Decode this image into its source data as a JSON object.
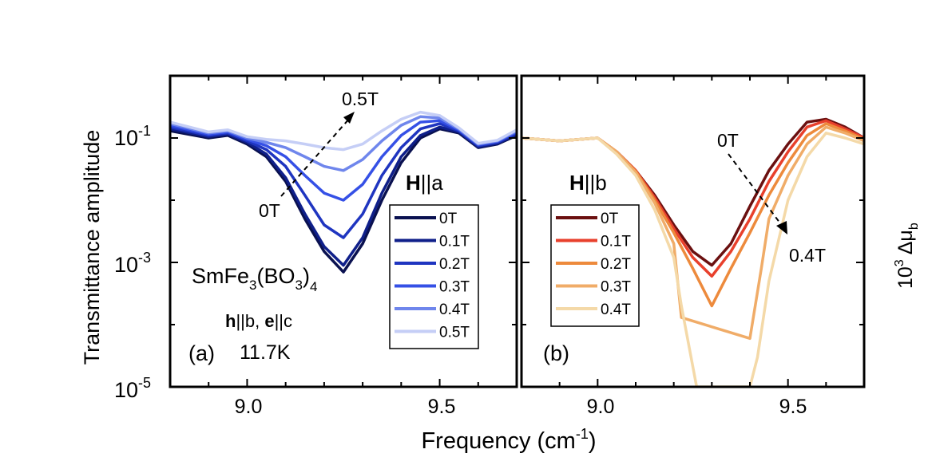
{
  "figure": {
    "ylabel": "Transmittance amplitude",
    "xlabel": "Frequency (cm",
    "xlabel_sup": "-1",
    "xlabel_tail": ")",
    "right_label_base": "10",
    "right_label_exp": "3",
    "right_label_sym": "Δμ",
    "right_label_sub": "b"
  },
  "panel_a": {
    "tag": "(a)",
    "sample_main": "SmFe",
    "sample_sub1": "3",
    "sample_mid": "(BO",
    "sample_sub2": "3",
    "sample_close": ")",
    "sample_sub3": "4",
    "pol_h": "h",
    "pol_hb": "||b, ",
    "pol_e": "e",
    "pol_ec": "||c",
    "temperature": "11.7K",
    "field_h": "H",
    "field_dir": "||a",
    "arrow_start": "0T",
    "arrow_end": "0.5T"
  },
  "panel_b": {
    "tag": "(b)",
    "field_h": "H",
    "field_dir": "||b",
    "arrow_start": "0T",
    "arrow_end": "0.4T"
  },
  "chart_data": [
    {
      "type": "line",
      "panel": "a",
      "xlim": [
        8.8,
        9.7
      ],
      "ylim": [
        1e-05,
        1
      ],
      "yscale": "log",
      "xticks": [
        "9.0",
        "9.5"
      ],
      "yticks": [
        {
          "base": "10",
          "exp": "-1"
        },
        {
          "base": "10",
          "exp": "-3"
        },
        {
          "base": "10",
          "exp": "-5"
        }
      ],
      "legend": "lower-right",
      "series": [
        {
          "name": "0T",
          "color": "#0a1150",
          "x": [
            8.8,
            8.9,
            8.95,
            9.0,
            9.05,
            9.1,
            9.15,
            9.2,
            9.25,
            9.3,
            9.35,
            9.4,
            9.45,
            9.5,
            9.55,
            9.6,
            9.65,
            9.7
          ],
          "y": [
            0.13,
            0.1,
            0.11,
            0.08,
            0.05,
            0.02,
            0.005,
            0.0015,
            0.0007,
            0.002,
            0.01,
            0.04,
            0.1,
            0.14,
            0.12,
            0.07,
            0.08,
            0.11
          ]
        },
        {
          "name": "0.1T",
          "color": "#0f1f8a",
          "x": [
            8.8,
            8.9,
            8.95,
            9.0,
            9.05,
            9.1,
            9.15,
            9.2,
            9.25,
            9.3,
            9.35,
            9.4,
            9.45,
            9.5,
            9.55,
            9.6,
            9.65,
            9.7
          ],
          "y": [
            0.14,
            0.105,
            0.115,
            0.085,
            0.055,
            0.023,
            0.006,
            0.0018,
            0.0009,
            0.0025,
            0.013,
            0.05,
            0.11,
            0.15,
            0.125,
            0.072,
            0.082,
            0.115
          ]
        },
        {
          "name": "0.2T",
          "color": "#1f35c0",
          "x": [
            8.8,
            8.9,
            8.95,
            9.0,
            9.05,
            9.1,
            9.15,
            9.2,
            9.25,
            9.3,
            9.35,
            9.4,
            9.45,
            9.5,
            9.55,
            9.6,
            9.65,
            9.7
          ],
          "y": [
            0.15,
            0.11,
            0.12,
            0.09,
            0.065,
            0.035,
            0.012,
            0.004,
            0.0025,
            0.006,
            0.025,
            0.07,
            0.14,
            0.17,
            0.13,
            0.075,
            0.085,
            0.12
          ]
        },
        {
          "name": "0.3T",
          "color": "#3550e6",
          "x": [
            8.8,
            8.9,
            8.95,
            9.0,
            9.05,
            9.1,
            9.15,
            9.2,
            9.25,
            9.3,
            9.35,
            9.4,
            9.45,
            9.5,
            9.55,
            9.6,
            9.65,
            9.7
          ],
          "y": [
            0.16,
            0.115,
            0.125,
            0.095,
            0.075,
            0.05,
            0.025,
            0.013,
            0.01,
            0.018,
            0.05,
            0.11,
            0.18,
            0.19,
            0.135,
            0.078,
            0.088,
            0.125
          ]
        },
        {
          "name": "0.4T",
          "color": "#6f86ec",
          "x": [
            8.8,
            8.9,
            8.95,
            9.0,
            9.05,
            9.1,
            9.15,
            9.2,
            9.25,
            9.3,
            9.35,
            9.4,
            9.45,
            9.5,
            9.55,
            9.6,
            9.65,
            9.7
          ],
          "y": [
            0.17,
            0.12,
            0.13,
            0.1,
            0.085,
            0.07,
            0.05,
            0.035,
            0.03,
            0.045,
            0.09,
            0.16,
            0.22,
            0.21,
            0.14,
            0.08,
            0.09,
            0.13
          ]
        },
        {
          "name": "0.5T",
          "color": "#c5cef6",
          "x": [
            8.8,
            8.9,
            8.95,
            9.0,
            9.05,
            9.1,
            9.15,
            9.2,
            9.25,
            9.3,
            9.35,
            9.4,
            9.45,
            9.5,
            9.55,
            9.6,
            9.65,
            9.7
          ],
          "y": [
            0.18,
            0.125,
            0.135,
            0.105,
            0.095,
            0.09,
            0.08,
            0.07,
            0.065,
            0.08,
            0.13,
            0.2,
            0.26,
            0.23,
            0.145,
            0.082,
            0.092,
            0.135
          ]
        }
      ]
    },
    {
      "type": "line",
      "panel": "b",
      "xlim": [
        8.8,
        9.7
      ],
      "ylim": [
        1e-05,
        1
      ],
      "yscale": "log",
      "xticks": [
        "9.0",
        "9.5"
      ],
      "legend": "lower-left",
      "series": [
        {
          "name": "0T",
          "color": "#6b1010",
          "x": [
            8.8,
            8.9,
            9.0,
            9.05,
            9.1,
            9.15,
            9.2,
            9.25,
            9.3,
            9.35,
            9.4,
            9.45,
            9.5,
            9.55,
            9.6,
            9.65,
            9.7
          ],
          "y": [
            0.1,
            0.09,
            0.1,
            0.06,
            0.03,
            0.012,
            0.004,
            0.0015,
            0.0009,
            0.002,
            0.008,
            0.03,
            0.08,
            0.18,
            0.2,
            0.15,
            0.1
          ]
        },
        {
          "name": "0.1T",
          "color": "#e8402c",
          "x": [
            8.8,
            8.9,
            9.0,
            9.05,
            9.1,
            9.15,
            9.2,
            9.25,
            9.3,
            9.35,
            9.4,
            9.45,
            9.5,
            9.55,
            9.6,
            9.65,
            9.7
          ],
          "y": [
            0.1,
            0.09,
            0.1,
            0.06,
            0.03,
            0.011,
            0.0035,
            0.0012,
            0.0006,
            0.0015,
            0.005,
            0.02,
            0.06,
            0.15,
            0.19,
            0.14,
            0.1
          ]
        },
        {
          "name": "0.2T",
          "color": "#ed8a3c",
          "x": [
            8.8,
            8.9,
            9.0,
            9.05,
            9.1,
            9.15,
            9.2,
            9.25,
            9.3,
            9.35,
            9.4,
            9.45,
            9.5,
            9.55,
            9.6,
            9.65,
            9.7
          ],
          "y": [
            0.1,
            0.09,
            0.1,
            0.06,
            0.029,
            0.01,
            0.003,
            0.0008,
            0.0002,
            0.0008,
            0.003,
            0.012,
            0.04,
            0.11,
            0.17,
            0.13,
            0.095
          ]
        },
        {
          "name": "0.3T",
          "color": "#f0ac68",
          "x": [
            8.8,
            8.9,
            9.0,
            9.05,
            9.1,
            9.15,
            9.2,
            9.22,
            9.4,
            9.43,
            9.45,
            9.5,
            9.55,
            9.6,
            9.65,
            9.7
          ],
          "y": [
            0.1,
            0.09,
            0.1,
            0.06,
            0.028,
            0.009,
            0.002,
            0.00013,
            6e-05,
            0.0008,
            0.005,
            0.025,
            0.08,
            0.15,
            0.12,
            0.09
          ]
        },
        {
          "name": "0.4T",
          "color": "#f4d9a8",
          "x": [
            8.8,
            8.9,
            9.0,
            9.05,
            9.1,
            9.15,
            9.2,
            9.22,
            9.26,
            9.4,
            9.42,
            9.45,
            9.5,
            9.55,
            9.6,
            9.65,
            9.7
          ],
          "y": [
            0.1,
            0.09,
            0.1,
            0.055,
            0.025,
            0.007,
            0.0012,
            0.0002,
            1e-05,
            1e-05,
            3e-05,
            0.0005,
            0.01,
            0.05,
            0.12,
            0.1,
            0.08
          ]
        }
      ]
    }
  ]
}
